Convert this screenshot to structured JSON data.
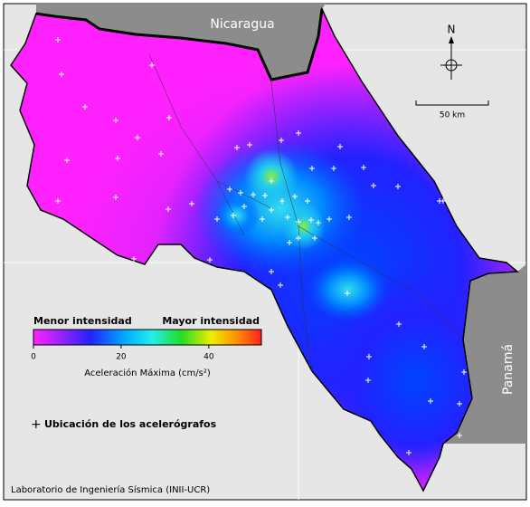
{
  "map": {
    "country_labels": {
      "north": "Nicaragua",
      "east": "Panamá"
    },
    "compass": "N",
    "scale_bar": "50 km",
    "colorbar": {
      "low_label": "Menor intensidad",
      "high_label": "Mayor intensidad",
      "lim": [
        0,
        52
      ],
      "ticks": [
        0,
        20,
        40
      ],
      "title": "Aceleración Máxima (cm/s²)"
    },
    "legend": "Ubicación de los acelerógrafos",
    "footer": "Laboratorio de Ingeniería Sísmica (INII-UCR)"
  }
}
